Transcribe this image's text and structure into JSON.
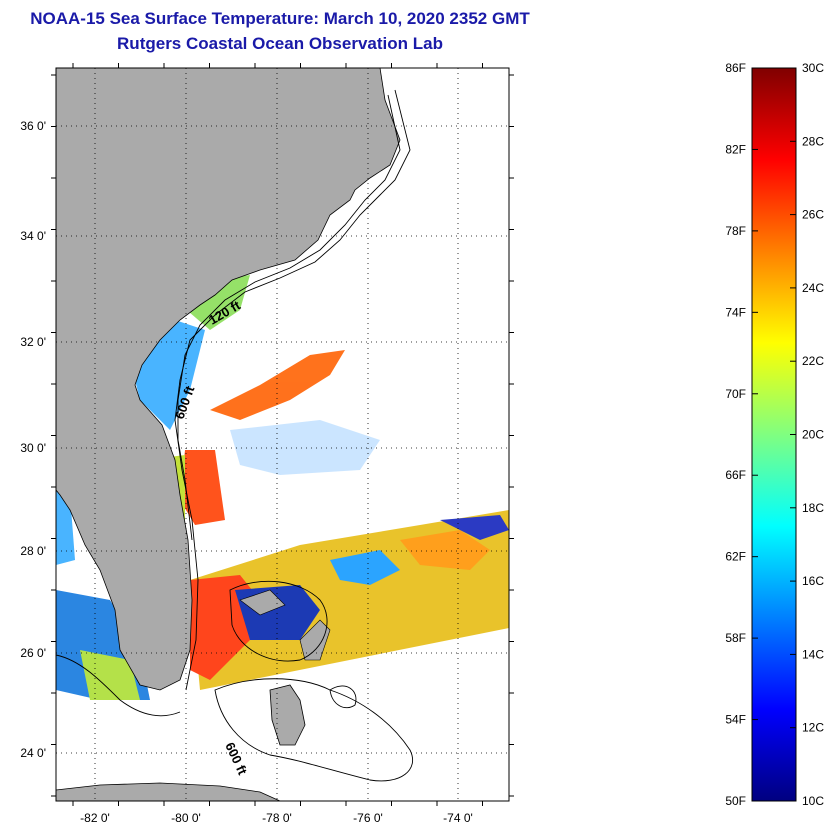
{
  "title": "NOAA-15 Sea Surface Temperature:  March 10, 2020 2352 GMT",
  "subtitle": "Rutgers Coastal Ocean Observation Lab",
  "map": {
    "lon_ticks": [
      "-82 0'",
      "-80 0'",
      "-78 0'",
      "-76 0'",
      "-74 0'"
    ],
    "lat_ticks": [
      "36 0'",
      "34 0'",
      "32 0'",
      "30 0'",
      "28 0'",
      "26 0'",
      "24 0'"
    ],
    "contour_labels": [
      "120 ft",
      "600 ft",
      "600 ft"
    ],
    "land_color": "#aaaaaa"
  },
  "colorbar": {
    "f_labels": [
      "86F",
      "82F",
      "78F",
      "74F",
      "70F",
      "66F",
      "62F",
      "58F",
      "54F",
      "50F"
    ],
    "c_labels": [
      "30C",
      "28C",
      "26C",
      "24C",
      "22C",
      "20C",
      "18C",
      "16C",
      "14C",
      "12C",
      "10C"
    ],
    "stops": [
      "#000080",
      "#0000ff",
      "#0080ff",
      "#00ffff",
      "#80ff80",
      "#ffff00",
      "#ff8000",
      "#ff0000",
      "#800000"
    ]
  }
}
